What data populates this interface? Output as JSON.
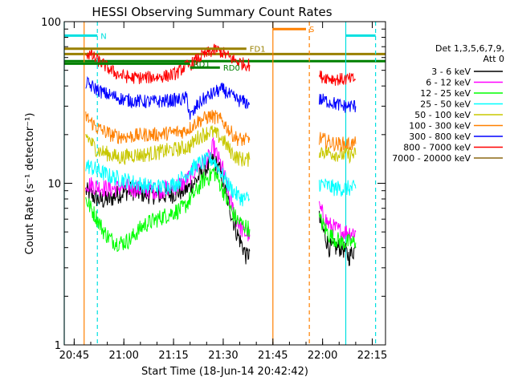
{
  "chart_data": {
    "type": "line",
    "title": "HESSI Observing Summary Count Rates",
    "xlabel": "Start Time (18-Jun-14 20:42:42)",
    "ylabel": "Count Rate (s⁻¹ detector⁻¹)",
    "x_unit": "minutes after 20:42:42",
    "xlim": [
      0,
      97
    ],
    "ylim": [
      1,
      100
    ],
    "yscale": "log",
    "x_ticks": [
      {
        "v": 3,
        "label": "20:45"
      },
      {
        "v": 18,
        "label": "21:00"
      },
      {
        "v": 33,
        "label": "21:15"
      },
      {
        "v": 48,
        "label": "21:30"
      },
      {
        "v": 63,
        "label": "21:45"
      },
      {
        "v": 78,
        "label": "22:00"
      },
      {
        "v": 93,
        "label": "22:15"
      }
    ],
    "y_ticks": [
      {
        "v": 1,
        "label": "1"
      },
      {
        "v": 10,
        "label": "10"
      },
      {
        "v": 100,
        "label": "100"
      }
    ],
    "legend": {
      "position": "right",
      "header": [
        "Det 1,3,5,6,7,9,",
        "Att 0"
      ],
      "entries": [
        {
          "name": "3 - 6 keV",
          "color": "#000000"
        },
        {
          "name": "6 - 12 keV",
          "color": "#ff00ff"
        },
        {
          "name": "12 - 25 keV",
          "color": "#00ff00"
        },
        {
          "name": "25 - 50 keV",
          "color": "#00ffff"
        },
        {
          "name": "50 - 100 keV",
          "color": "#c8c800"
        },
        {
          "name": "100 - 300 keV",
          "color": "#ff8000"
        },
        {
          "name": "300 - 800 keV",
          "color": "#0000ff"
        },
        {
          "name": "800 - 7000 keV",
          "color": "#ff0000"
        },
        {
          "name": "7000 - 20000 keV",
          "color": "#8b6914"
        }
      ]
    },
    "flags": [
      {
        "label": "N",
        "color": "#00e0e0",
        "segments": [
          [
            0,
            10
          ],
          [
            85,
            94
          ]
        ],
        "y": 82
      },
      {
        "label": "S",
        "color": "#ff8000",
        "segments": [
          [
            63,
            73
          ]
        ],
        "y": 90
      },
      {
        "label": "FD1",
        "color": "#998000",
        "segments": [
          [
            0,
            55
          ]
        ],
        "y": 68
      },
      {
        "label": "RD0",
        "color": "#008000",
        "segments": [
          [
            38,
            47
          ]
        ],
        "y": 52
      },
      {
        "label": "RD1",
        "color": "#008000",
        "segments": [
          [
            0,
            38
          ]
        ],
        "y": 55
      }
    ],
    "flag_lines": [
      {
        "color": "#998000",
        "y": 63,
        "x": [
          0,
          97
        ]
      },
      {
        "color": "#008000",
        "y": 57,
        "x": [
          0,
          97
        ]
      }
    ],
    "gaps": [
      {
        "color": "#00e0e0",
        "x": 0,
        "style": "solid"
      },
      {
        "color": "#00e0e0",
        "x": 10,
        "style": "dashed"
      },
      {
        "color": "#ff8000",
        "x": 6,
        "style": "solid"
      },
      {
        "color": "#ff8000",
        "x": 63,
        "style": "solid"
      },
      {
        "color": "#ff8000",
        "x": 74,
        "style": "dashed"
      },
      {
        "color": "#00e0e0",
        "x": 85,
        "style": "solid"
      },
      {
        "color": "#00e0e0",
        "x": 94,
        "style": "dashed"
      }
    ],
    "series": [
      {
        "name": "3 - 6 keV",
        "color": "#000000",
        "segments": [
          [
            [
              6.5,
              9
            ],
            [
              8,
              8.5
            ],
            [
              10,
              8
            ],
            [
              12,
              7.8
            ],
            [
              14,
              8
            ],
            [
              16,
              8.5
            ],
            [
              18,
              8.8
            ],
            [
              20,
              9
            ],
            [
              24,
              8.6
            ],
            [
              28,
              8.4
            ],
            [
              32,
              8.5
            ],
            [
              36,
              9
            ],
            [
              38,
              9.5
            ],
            [
              40,
              10.5
            ],
            [
              42,
              12
            ],
            [
              44,
              13
            ],
            [
              45,
              14
            ],
            [
              46,
              13
            ],
            [
              47,
              12
            ],
            [
              48,
              10
            ],
            [
              50,
              7
            ],
            [
              52,
              5
            ],
            [
              54,
              4
            ],
            [
              55,
              3.5
            ],
            [
              56,
              3.8
            ]
          ],
          [
            [
              77,
              6
            ],
            [
              80,
              4
            ],
            [
              82,
              4
            ],
            [
              84,
              4
            ],
            [
              86,
              3.5
            ],
            [
              88,
              4
            ]
          ]
        ]
      },
      {
        "name": "6 - 12 keV",
        "color": "#ff00ff",
        "segments": [
          [
            [
              6.5,
              10
            ],
            [
              10,
              9.5
            ],
            [
              14,
              9.2
            ],
            [
              18,
              9.5
            ],
            [
              22,
              9.2
            ],
            [
              28,
              9
            ],
            [
              33,
              9.5
            ],
            [
              36,
              10
            ],
            [
              38,
              11
            ],
            [
              40,
              12.5
            ],
            [
              42,
              13.5
            ],
            [
              44,
              14.5
            ],
            [
              45,
              17
            ],
            [
              46,
              15
            ],
            [
              48,
              12
            ],
            [
              50,
              8
            ],
            [
              52,
              6
            ],
            [
              54,
              5
            ],
            [
              56,
              4.8
            ]
          ],
          [
            [
              77,
              7
            ],
            [
              80,
              5.5
            ],
            [
              82,
              5.2
            ],
            [
              84,
              5
            ],
            [
              86,
              5
            ],
            [
              88,
              5
            ]
          ]
        ]
      },
      {
        "name": "12 - 25 keV",
        "color": "#00ff00",
        "segments": [
          [
            [
              6.5,
              8
            ],
            [
              8,
              7
            ],
            [
              10,
              6
            ],
            [
              12,
              5
            ],
            [
              14,
              4.5
            ],
            [
              16,
              4.3
            ],
            [
              18,
              4.3
            ],
            [
              20,
              4.5
            ],
            [
              22,
              5
            ],
            [
              24,
              5.5
            ],
            [
              28,
              6
            ],
            [
              32,
              6.5
            ],
            [
              36,
              7
            ],
            [
              38,
              8
            ],
            [
              40,
              9
            ],
            [
              42,
              10.5
            ],
            [
              44,
              11
            ],
            [
              45,
              12
            ],
            [
              46,
              11
            ],
            [
              48,
              9
            ],
            [
              50,
              7
            ],
            [
              52,
              6
            ],
            [
              54,
              5.5
            ],
            [
              56,
              5.2
            ]
          ],
          [
            [
              77,
              6
            ],
            [
              80,
              4.8
            ],
            [
              82,
              4.5
            ],
            [
              84,
              4.3
            ],
            [
              86,
              4.3
            ],
            [
              88,
              4.3
            ]
          ]
        ]
      },
      {
        "name": "25 - 50 keV",
        "color": "#00ffff",
        "segments": [
          [
            [
              6.5,
              13
            ],
            [
              10,
              12
            ],
            [
              14,
              11
            ],
            [
              18,
              10.5
            ],
            [
              22,
              10
            ],
            [
              26,
              9.5
            ],
            [
              30,
              9.5
            ],
            [
              34,
              10
            ],
            [
              36,
              11
            ],
            [
              38,
              12
            ],
            [
              40,
              13
            ],
            [
              42,
              13.5
            ],
            [
              44,
              14
            ],
            [
              45,
              14
            ],
            [
              46,
              13
            ],
            [
              48,
              11
            ],
            [
              50,
              9.5
            ],
            [
              52,
              8.5
            ],
            [
              54,
              8
            ],
            [
              56,
              8
            ]
          ],
          [
            [
              77,
              10
            ],
            [
              80,
              9.5
            ],
            [
              82,
              9.3
            ],
            [
              84,
              9.3
            ],
            [
              86,
              9.3
            ],
            [
              88,
              9.3
            ]
          ]
        ]
      },
      {
        "name": "50 - 100 keV",
        "color": "#c8c800",
        "segments": [
          [
            [
              6.5,
              20
            ],
            [
              8,
              18
            ],
            [
              10,
              16
            ],
            [
              12,
              15.5
            ],
            [
              14,
              15
            ],
            [
              16,
              14.5
            ],
            [
              18,
              14.5
            ],
            [
              20,
              15
            ],
            [
              24,
              15
            ],
            [
              28,
              15.5
            ],
            [
              32,
              16
            ],
            [
              36,
              16.5
            ],
            [
              38,
              17
            ],
            [
              40,
              19
            ],
            [
              42,
              20
            ],
            [
              44,
              21
            ],
            [
              46,
              20
            ],
            [
              48,
              18.5
            ],
            [
              50,
              16
            ],
            [
              52,
              14.5
            ],
            [
              54,
              14
            ],
            [
              56,
              14
            ]
          ],
          [
            [
              77,
              16
            ],
            [
              80,
              15.5
            ],
            [
              82,
              15.2
            ],
            [
              84,
              15
            ],
            [
              86,
              15
            ],
            [
              88,
              15
            ]
          ]
        ]
      },
      {
        "name": "100 - 300 keV",
        "color": "#ff8000",
        "segments": [
          [
            [
              6.5,
              26
            ],
            [
              8,
              24
            ],
            [
              10,
              22
            ],
            [
              12,
              21
            ],
            [
              14,
              20
            ],
            [
              16,
              19.5
            ],
            [
              18,
              19.5
            ],
            [
              20,
              19.5
            ],
            [
              24,
              20
            ],
            [
              28,
              20
            ],
            [
              32,
              20.5
            ],
            [
              36,
              21
            ],
            [
              38,
              22
            ],
            [
              40,
              24
            ],
            [
              42,
              25
            ],
            [
              44,
              26
            ],
            [
              46,
              25.5
            ],
            [
              48,
              24
            ],
            [
              50,
              21
            ],
            [
              52,
              19
            ],
            [
              54,
              18.5
            ],
            [
              56,
              18.5
            ]
          ],
          [
            [
              77,
              19
            ],
            [
              80,
              18
            ],
            [
              82,
              17.5
            ],
            [
              84,
              17.5
            ],
            [
              86,
              17.5
            ],
            [
              88,
              17.5
            ]
          ]
        ]
      },
      {
        "name": "300 - 800 keV",
        "color": "#0000ff",
        "segments": [
          [
            [
              6.5,
              42
            ],
            [
              8,
              40
            ],
            [
              10,
              38
            ],
            [
              12,
              36
            ],
            [
              14,
              35
            ],
            [
              16,
              34
            ],
            [
              18,
              33
            ],
            [
              20,
              32.5
            ],
            [
              24,
              32
            ],
            [
              28,
              32
            ],
            [
              32,
              32.5
            ],
            [
              36,
              33
            ],
            [
              37,
              34
            ],
            [
              38,
              26
            ],
            [
              39,
              27
            ],
            [
              40,
              30
            ],
            [
              42,
              33
            ],
            [
              44,
              35
            ],
            [
              46,
              37
            ],
            [
              48,
              38
            ],
            [
              50,
              35
            ],
            [
              52,
              33
            ],
            [
              54,
              32
            ],
            [
              56,
              31
            ]
          ],
          [
            [
              77,
              33
            ],
            [
              80,
              32
            ],
            [
              82,
              31
            ],
            [
              84,
              30
            ],
            [
              86,
              30
            ],
            [
              88,
              30
            ]
          ]
        ]
      },
      {
        "name": "800 - 7000 keV",
        "color": "#ff0000",
        "segments": [
          [
            [
              6.5,
              64
            ],
            [
              8,
              62
            ],
            [
              10,
              58
            ],
            [
              12,
              54
            ],
            [
              14,
              50
            ],
            [
              16,
              47.5
            ],
            [
              18,
              46
            ],
            [
              20,
              45
            ],
            [
              24,
              45
            ],
            [
              28,
              45.5
            ],
            [
              32,
              46.5
            ],
            [
              34,
              48
            ],
            [
              36,
              52
            ],
            [
              38,
              54
            ],
            [
              40,
              58
            ],
            [
              42,
              62
            ],
            [
              44,
              65
            ],
            [
              46,
              67
            ],
            [
              48,
              64
            ],
            [
              50,
              60
            ],
            [
              52,
              57
            ],
            [
              54,
              55
            ],
            [
              56,
              54
            ]
          ],
          [
            [
              77,
              46
            ],
            [
              80,
              45
            ],
            [
              82,
              44
            ],
            [
              84,
              44
            ],
            [
              86,
              44
            ],
            [
              88,
              44
            ]
          ]
        ]
      },
      {
        "name": "7000 - 20000 keV",
        "color": "#8b6914",
        "segments": []
      }
    ]
  }
}
